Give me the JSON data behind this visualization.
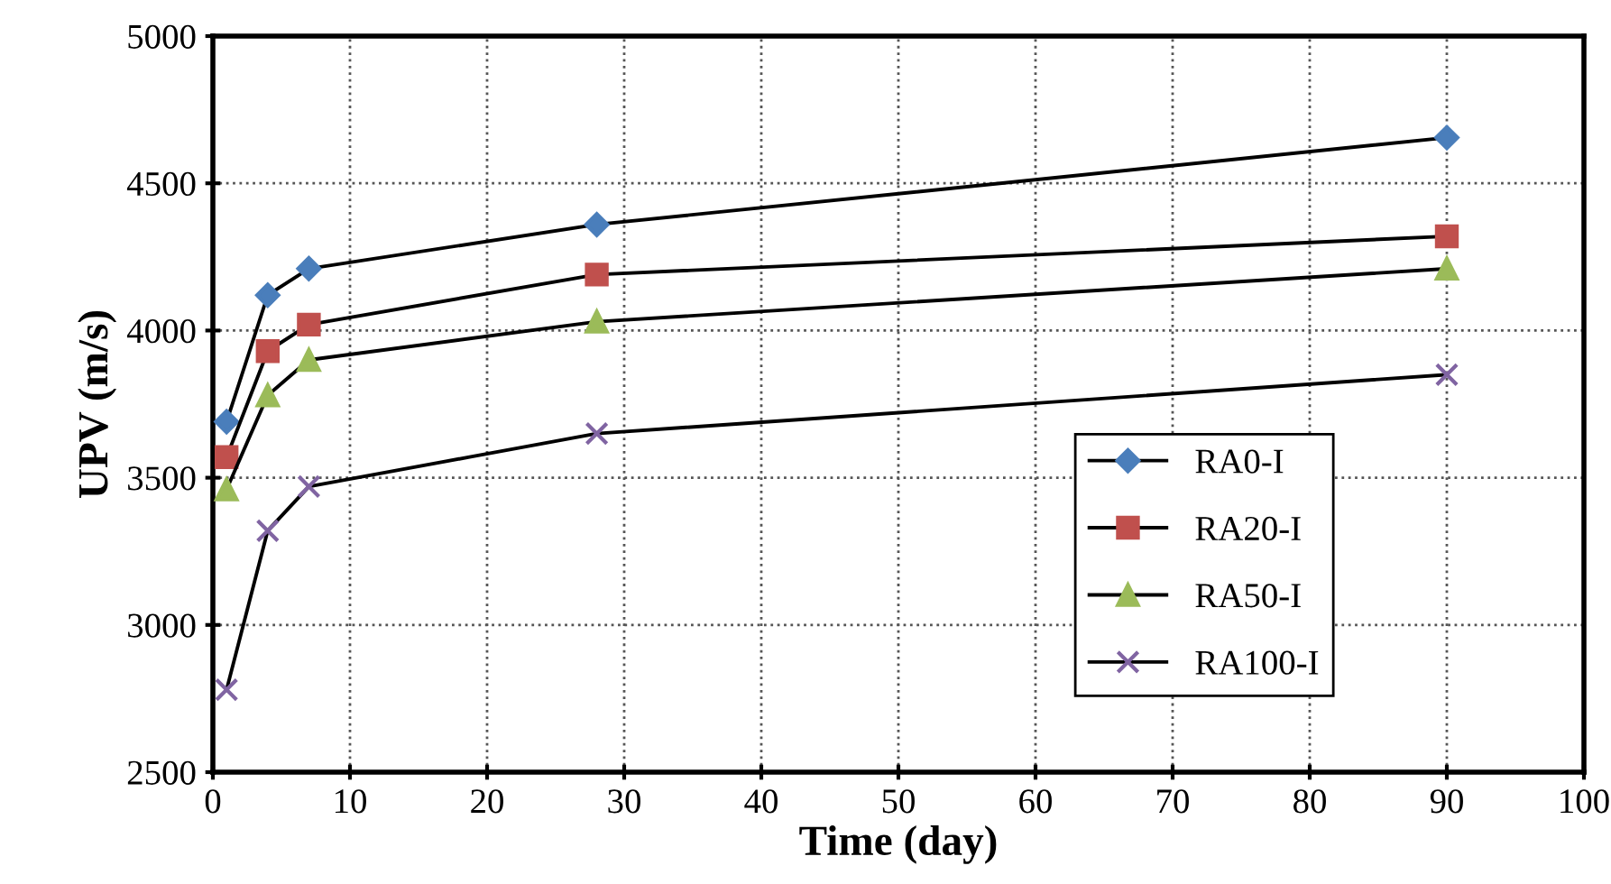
{
  "chart_data": {
    "type": "line",
    "xlabel": "Time (day)",
    "ylabel": "UPV (m/s)",
    "x": [
      1,
      4,
      7,
      28,
      90
    ],
    "series": [
      {
        "name": "RA0-I",
        "color": "#4a7ebb",
        "marker": "diamond",
        "values": [
          3690,
          4120,
          4210,
          4360,
          4655
        ]
      },
      {
        "name": "RA20-I",
        "color": "#c0504d",
        "marker": "square",
        "values": [
          3570,
          3930,
          4020,
          4190,
          4320
        ]
      },
      {
        "name": "RA50-I",
        "color": "#9bbb59",
        "marker": "triangle",
        "values": [
          3460,
          3780,
          3900,
          4030,
          4210
        ]
      },
      {
        "name": "RA100-I",
        "color": "#8064a2",
        "marker": "cross",
        "values": [
          2780,
          3320,
          3470,
          3650,
          3850
        ]
      }
    ],
    "xlim": [
      0,
      100
    ],
    "xticks": [
      0,
      10,
      20,
      30,
      40,
      50,
      60,
      70,
      80,
      90,
      100
    ],
    "ylim": [
      2500,
      5000
    ],
    "yticks": [
      2500,
      3000,
      3500,
      4000,
      4500,
      5000
    ],
    "grid": true,
    "legend": "lower right",
    "line_style": "solid"
  }
}
